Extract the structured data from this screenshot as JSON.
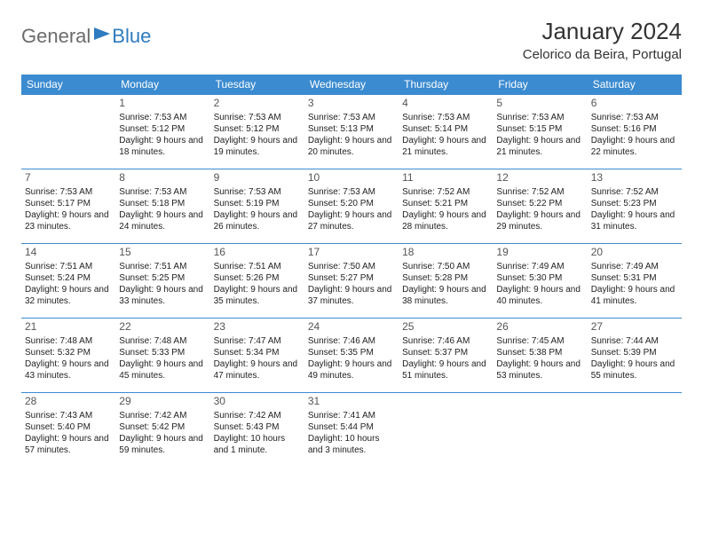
{
  "logo": {
    "text1": "General",
    "text2": "Blue"
  },
  "title": "January 2024",
  "location": "Celorico da Beira, Portugal",
  "colors": {
    "header_bg": "#3b8bd0",
    "header_fg": "#ffffff",
    "border": "#3b8bd0",
    "logo_gray": "#6b6b6b",
    "logo_blue": "#2e7bc0"
  },
  "weekdays": [
    "Sunday",
    "Monday",
    "Tuesday",
    "Wednesday",
    "Thursday",
    "Friday",
    "Saturday"
  ],
  "weeks": [
    [
      {
        "day": "",
        "sunrise": "",
        "sunset": "",
        "daylight": ""
      },
      {
        "day": "1",
        "sunrise": "Sunrise: 7:53 AM",
        "sunset": "Sunset: 5:12 PM",
        "daylight": "Daylight: 9 hours and 18 minutes."
      },
      {
        "day": "2",
        "sunrise": "Sunrise: 7:53 AM",
        "sunset": "Sunset: 5:12 PM",
        "daylight": "Daylight: 9 hours and 19 minutes."
      },
      {
        "day": "3",
        "sunrise": "Sunrise: 7:53 AM",
        "sunset": "Sunset: 5:13 PM",
        "daylight": "Daylight: 9 hours and 20 minutes."
      },
      {
        "day": "4",
        "sunrise": "Sunrise: 7:53 AM",
        "sunset": "Sunset: 5:14 PM",
        "daylight": "Daylight: 9 hours and 21 minutes."
      },
      {
        "day": "5",
        "sunrise": "Sunrise: 7:53 AM",
        "sunset": "Sunset: 5:15 PM",
        "daylight": "Daylight: 9 hours and 21 minutes."
      },
      {
        "day": "6",
        "sunrise": "Sunrise: 7:53 AM",
        "sunset": "Sunset: 5:16 PM",
        "daylight": "Daylight: 9 hours and 22 minutes."
      }
    ],
    [
      {
        "day": "7",
        "sunrise": "Sunrise: 7:53 AM",
        "sunset": "Sunset: 5:17 PM",
        "daylight": "Daylight: 9 hours and 23 minutes."
      },
      {
        "day": "8",
        "sunrise": "Sunrise: 7:53 AM",
        "sunset": "Sunset: 5:18 PM",
        "daylight": "Daylight: 9 hours and 24 minutes."
      },
      {
        "day": "9",
        "sunrise": "Sunrise: 7:53 AM",
        "sunset": "Sunset: 5:19 PM",
        "daylight": "Daylight: 9 hours and 26 minutes."
      },
      {
        "day": "10",
        "sunrise": "Sunrise: 7:53 AM",
        "sunset": "Sunset: 5:20 PM",
        "daylight": "Daylight: 9 hours and 27 minutes."
      },
      {
        "day": "11",
        "sunrise": "Sunrise: 7:52 AM",
        "sunset": "Sunset: 5:21 PM",
        "daylight": "Daylight: 9 hours and 28 minutes."
      },
      {
        "day": "12",
        "sunrise": "Sunrise: 7:52 AM",
        "sunset": "Sunset: 5:22 PM",
        "daylight": "Daylight: 9 hours and 29 minutes."
      },
      {
        "day": "13",
        "sunrise": "Sunrise: 7:52 AM",
        "sunset": "Sunset: 5:23 PM",
        "daylight": "Daylight: 9 hours and 31 minutes."
      }
    ],
    [
      {
        "day": "14",
        "sunrise": "Sunrise: 7:51 AM",
        "sunset": "Sunset: 5:24 PM",
        "daylight": "Daylight: 9 hours and 32 minutes."
      },
      {
        "day": "15",
        "sunrise": "Sunrise: 7:51 AM",
        "sunset": "Sunset: 5:25 PM",
        "daylight": "Daylight: 9 hours and 33 minutes."
      },
      {
        "day": "16",
        "sunrise": "Sunrise: 7:51 AM",
        "sunset": "Sunset: 5:26 PM",
        "daylight": "Daylight: 9 hours and 35 minutes."
      },
      {
        "day": "17",
        "sunrise": "Sunrise: 7:50 AM",
        "sunset": "Sunset: 5:27 PM",
        "daylight": "Daylight: 9 hours and 37 minutes."
      },
      {
        "day": "18",
        "sunrise": "Sunrise: 7:50 AM",
        "sunset": "Sunset: 5:28 PM",
        "daylight": "Daylight: 9 hours and 38 minutes."
      },
      {
        "day": "19",
        "sunrise": "Sunrise: 7:49 AM",
        "sunset": "Sunset: 5:30 PM",
        "daylight": "Daylight: 9 hours and 40 minutes."
      },
      {
        "day": "20",
        "sunrise": "Sunrise: 7:49 AM",
        "sunset": "Sunset: 5:31 PM",
        "daylight": "Daylight: 9 hours and 41 minutes."
      }
    ],
    [
      {
        "day": "21",
        "sunrise": "Sunrise: 7:48 AM",
        "sunset": "Sunset: 5:32 PM",
        "daylight": "Daylight: 9 hours and 43 minutes."
      },
      {
        "day": "22",
        "sunrise": "Sunrise: 7:48 AM",
        "sunset": "Sunset: 5:33 PM",
        "daylight": "Daylight: 9 hours and 45 minutes."
      },
      {
        "day": "23",
        "sunrise": "Sunrise: 7:47 AM",
        "sunset": "Sunset: 5:34 PM",
        "daylight": "Daylight: 9 hours and 47 minutes."
      },
      {
        "day": "24",
        "sunrise": "Sunrise: 7:46 AM",
        "sunset": "Sunset: 5:35 PM",
        "daylight": "Daylight: 9 hours and 49 minutes."
      },
      {
        "day": "25",
        "sunrise": "Sunrise: 7:46 AM",
        "sunset": "Sunset: 5:37 PM",
        "daylight": "Daylight: 9 hours and 51 minutes."
      },
      {
        "day": "26",
        "sunrise": "Sunrise: 7:45 AM",
        "sunset": "Sunset: 5:38 PM",
        "daylight": "Daylight: 9 hours and 53 minutes."
      },
      {
        "day": "27",
        "sunrise": "Sunrise: 7:44 AM",
        "sunset": "Sunset: 5:39 PM",
        "daylight": "Daylight: 9 hours and 55 minutes."
      }
    ],
    [
      {
        "day": "28",
        "sunrise": "Sunrise: 7:43 AM",
        "sunset": "Sunset: 5:40 PM",
        "daylight": "Daylight: 9 hours and 57 minutes."
      },
      {
        "day": "29",
        "sunrise": "Sunrise: 7:42 AM",
        "sunset": "Sunset: 5:42 PM",
        "daylight": "Daylight: 9 hours and 59 minutes."
      },
      {
        "day": "30",
        "sunrise": "Sunrise: 7:42 AM",
        "sunset": "Sunset: 5:43 PM",
        "daylight": "Daylight: 10 hours and 1 minute."
      },
      {
        "day": "31",
        "sunrise": "Sunrise: 7:41 AM",
        "sunset": "Sunset: 5:44 PM",
        "daylight": "Daylight: 10 hours and 3 minutes."
      },
      {
        "day": "",
        "sunrise": "",
        "sunset": "",
        "daylight": ""
      },
      {
        "day": "",
        "sunrise": "",
        "sunset": "",
        "daylight": ""
      },
      {
        "day": "",
        "sunrise": "",
        "sunset": "",
        "daylight": ""
      }
    ]
  ]
}
